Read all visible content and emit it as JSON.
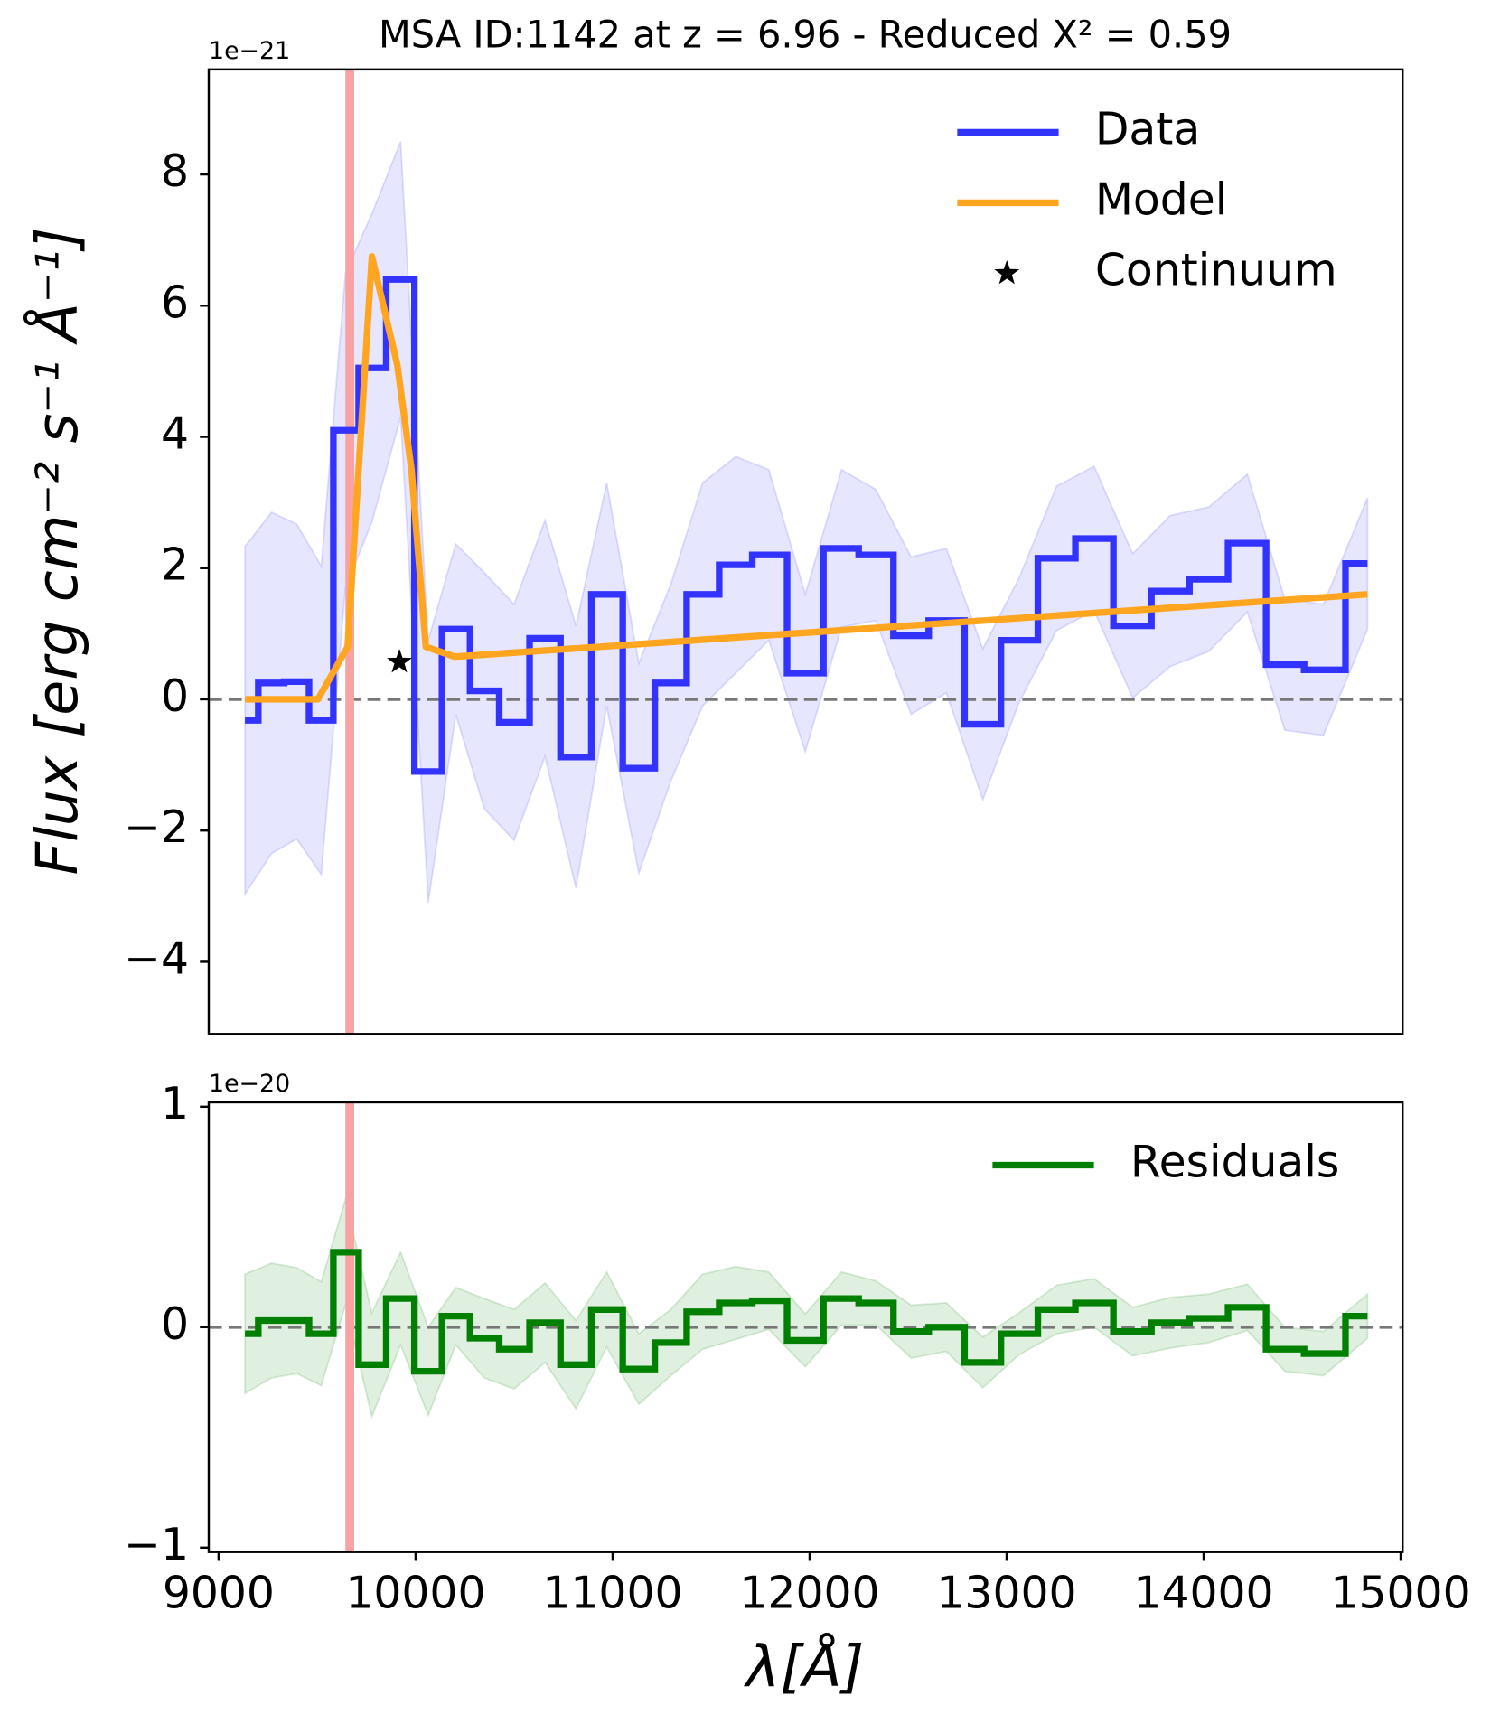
{
  "chart_data": [
    {
      "type": "step",
      "title": "MSA ID:1142 at z = 6.96 - Reduced X² = 0.59",
      "ylabel": "Flux [erg cm⁻² s⁻¹ Å⁻¹]",
      "offset_label": "1e−21",
      "xlim": [
        8950,
        15010
      ],
      "ylim": [
        -5.1,
        9.6
      ],
      "yticks": [
        {
          "value": -4,
          "label": "−4"
        },
        {
          "value": -2,
          "label": "−2"
        },
        0,
        2,
        4,
        6,
        8
      ],
      "hline": 0,
      "vline": 9666,
      "vline_color": "#f7a3a3",
      "legend": "upper right",
      "series": [
        {
          "name": "Data",
          "color": "#3333ff",
          "style": "step",
          "x": [
            9134,
            9269,
            9397,
            9521,
            9644,
            9778,
            9924,
            10064,
            10204,
            10349,
            10500,
            10657,
            10814,
            10970,
            11133,
            11295,
            11457,
            11625,
            11793,
            11978,
            12162,
            12336,
            12515,
            12694,
            12879,
            13063,
            13254,
            13444,
            13640,
            13830,
            14026,
            14222,
            14412,
            14608,
            14832
          ],
          "values": [
            -0.32,
            0.25,
            0.27,
            -0.32,
            4.1,
            5.05,
            6.4,
            -1.1,
            1.07,
            0.13,
            -0.35,
            0.93,
            -0.88,
            1.6,
            -1.05,
            0.25,
            1.6,
            2.05,
            2.2,
            0.4,
            2.3,
            2.2,
            0.97,
            1.2,
            -0.38,
            0.9,
            2.15,
            2.45,
            1.12,
            1.65,
            1.83,
            2.38,
            0.53,
            0.45,
            2.07
          ],
          "errors": [
            2.65,
            2.6,
            2.4,
            2.35,
            2.4,
            2.35,
            2.1,
            2.0,
            1.3,
            1.8,
            1.8,
            1.8,
            2.0,
            1.7,
            1.6,
            1.5,
            1.7,
            1.65,
            1.3,
            1.2,
            1.2,
            1.0,
            1.2,
            1.1,
            1.15,
            0.95,
            1.1,
            1.1,
            1.1,
            1.15,
            1.1,
            1.05,
            1.0,
            1.0,
            1.0
          ]
        },
        {
          "name": "Model",
          "color": "#ffa520",
          "style": "line",
          "x": [
            9134,
            9504,
            9655,
            9778,
            9907,
            9979,
            10052,
            10198,
            14832
          ],
          "values": [
            0,
            0,
            0.8,
            6.75,
            5.1,
            3.5,
            0.8,
            0.65,
            1.6
          ]
        },
        {
          "name": "Continuum",
          "color": "#000000",
          "style": "star",
          "x": [
            9918
          ],
          "values": [
            0.57
          ]
        }
      ]
    },
    {
      "type": "step",
      "xlabel": "λ[Å]",
      "offset_label": "1e−20",
      "xlim": [
        8950,
        15010
      ],
      "ylim": [
        -1.02,
        1.02
      ],
      "xticks": [
        9000,
        10000,
        11000,
        12000,
        13000,
        14000,
        15000
      ],
      "yticks": [
        {
          "value": -1,
          "label": "−1"
        },
        0,
        1
      ],
      "hline": 0,
      "vline": 9666,
      "vline_color": "#f7a3a3",
      "legend": "upper right",
      "series": [
        {
          "name": "Residuals",
          "color": "#008000",
          "style": "step",
          "x": [
            9134,
            9269,
            9397,
            9521,
            9644,
            9778,
            9924,
            10064,
            10204,
            10349,
            10500,
            10657,
            10814,
            10970,
            11133,
            11295,
            11457,
            11625,
            11793,
            11978,
            12162,
            12336,
            12515,
            12694,
            12879,
            13063,
            13254,
            13444,
            13640,
            13830,
            14026,
            14222,
            14412,
            14608,
            14832
          ],
          "values": [
            -0.03,
            0.03,
            0.03,
            -0.03,
            0.34,
            -0.17,
            0.13,
            -0.2,
            0.05,
            -0.05,
            -0.1,
            0.02,
            -0.17,
            0.08,
            -0.19,
            -0.07,
            0.07,
            0.11,
            0.12,
            -0.06,
            0.13,
            0.11,
            -0.02,
            0.0,
            -0.16,
            -0.03,
            0.08,
            0.11,
            -0.02,
            0.02,
            0.04,
            0.09,
            -0.1,
            -0.12,
            0.05
          ],
          "errors": [
            0.27,
            0.26,
            0.24,
            0.235,
            0.24,
            0.235,
            0.21,
            0.2,
            0.13,
            0.18,
            0.18,
            0.18,
            0.2,
            0.17,
            0.16,
            0.15,
            0.17,
            0.165,
            0.13,
            0.12,
            0.12,
            0.1,
            0.12,
            0.11,
            0.115,
            0.095,
            0.11,
            0.11,
            0.11,
            0.115,
            0.11,
            0.105,
            0.1,
            0.1,
            0.1
          ]
        }
      ]
    }
  ]
}
